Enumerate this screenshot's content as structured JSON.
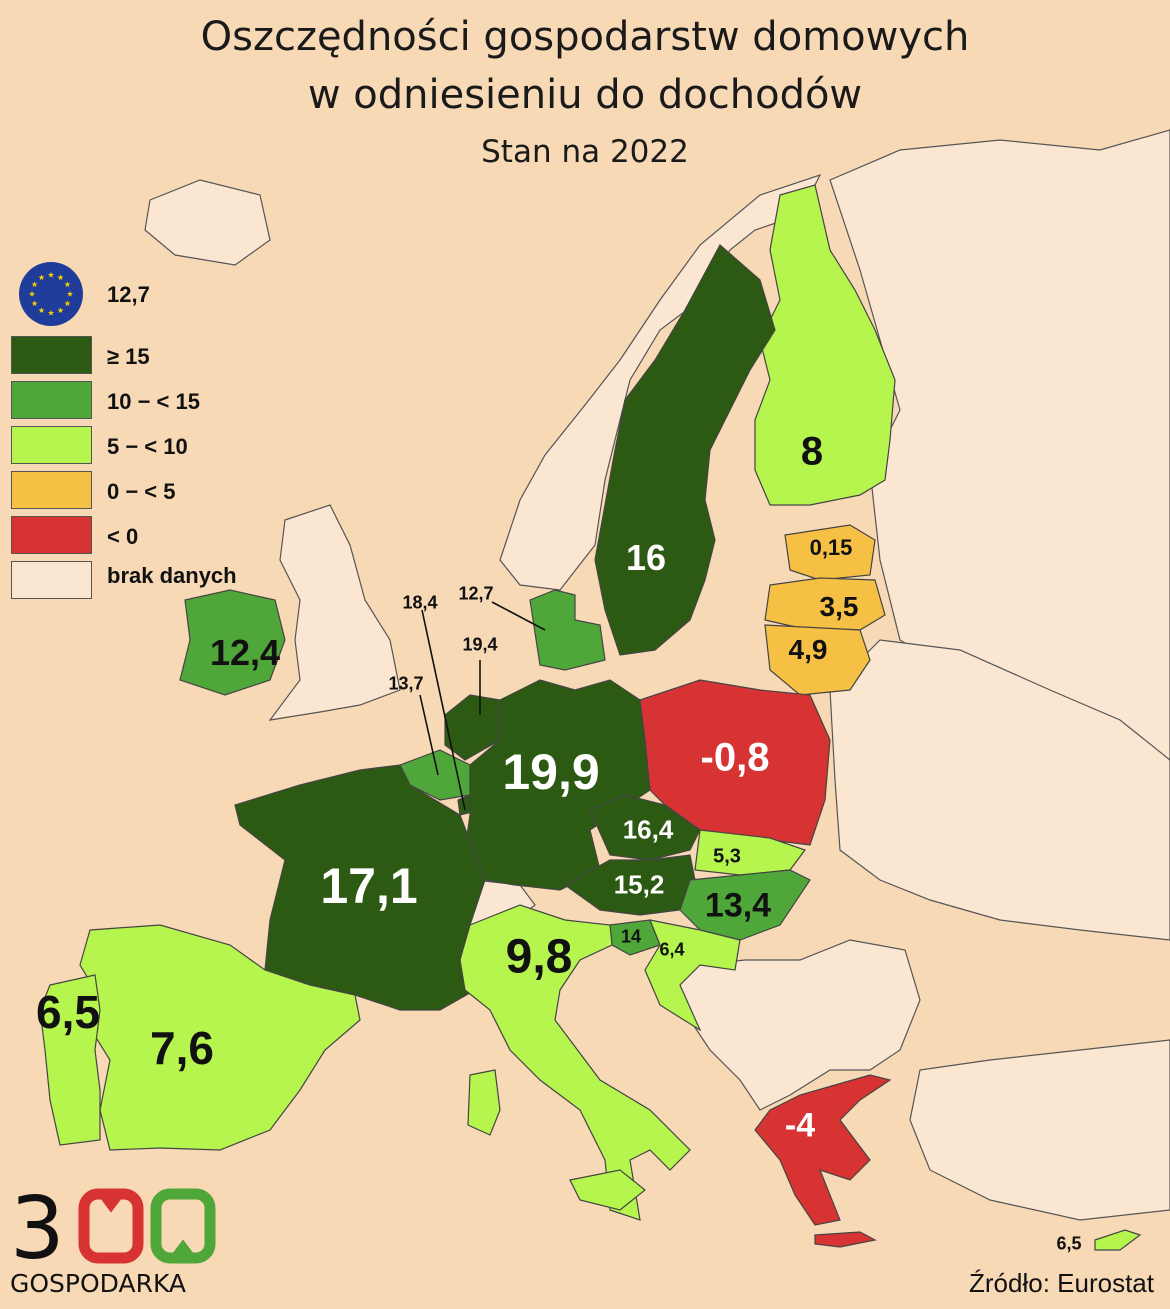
{
  "title": {
    "line1": "Oszczędności gospodarstw domowych",
    "line2": "w odniesieniu do dochodów",
    "line3": "Stan na 2022"
  },
  "legend": {
    "eu_value": "12,7",
    "items": [
      {
        "label": "≥ 15",
        "color": "#2d5a12"
      },
      {
        "label": "10 − < 15",
        "color": "#4fa73a"
      },
      {
        "label": "5 − < 10",
        "color": "#b6f54e"
      },
      {
        "label": "0 − < 5",
        "color": "#f5c044"
      },
      {
        "label": "< 0",
        "color": "#d83333"
      },
      {
        "label": "brak danych",
        "color": "#fbe6d2"
      }
    ]
  },
  "colors": {
    "background": "#f8d9b6",
    "no_data": "#fbe6d2",
    "border": "#555555"
  },
  "values": {
    "finland": "8",
    "sweden": "16",
    "estonia": "0,15",
    "latvia": "3,5",
    "lithuania": "4,9",
    "denmark": "12,7",
    "ireland": "12,4",
    "luxembourg": "18,4",
    "netherlands": "19,4",
    "belgium": "13,7",
    "germany": "19,9",
    "poland": "-0,8",
    "czechia": "16,4",
    "slovakia": "5,3",
    "austria": "15,2",
    "hungary": "13,4",
    "slovenia": "14",
    "croatia": "6,4",
    "france": "17,1",
    "italy": "9,8",
    "portugal": "6,5",
    "spain": "7,6",
    "greece": "-4",
    "cyprus": "6,5"
  },
  "source": "Źródło: Eurostat",
  "logo": {
    "digits": [
      "3",
      "0",
      "0"
    ],
    "digit_colors": [
      "#111111",
      "#d83333",
      "#4fa73a"
    ],
    "text": "GOSPODARKA"
  }
}
